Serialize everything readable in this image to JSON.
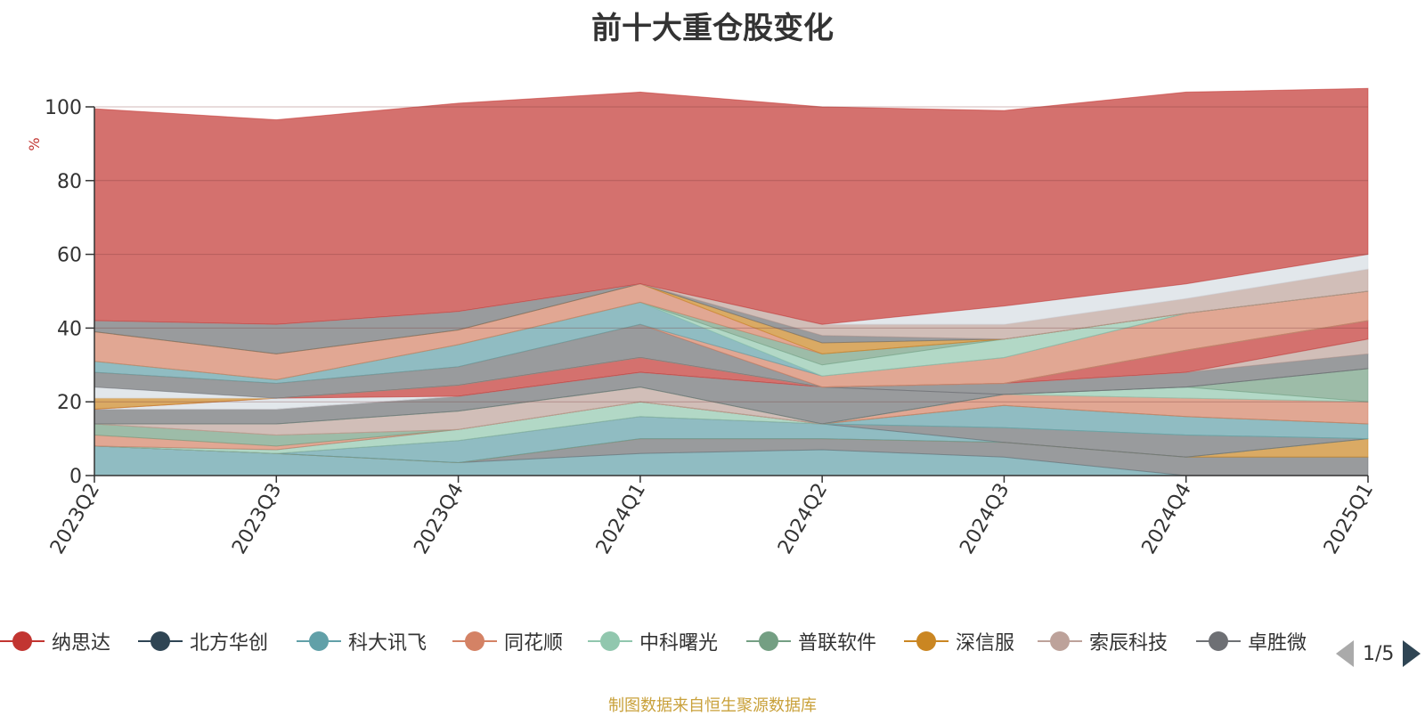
{
  "title": "前十大重仓股变化",
  "source_note": "制图数据来自恒生聚源数据库",
  "pager": {
    "text": "1/5"
  },
  "legend": [
    {
      "name": "纳思达",
      "color": "#c23531"
    },
    {
      "name": "北方华创",
      "color": "#2f4554"
    },
    {
      "name": "科大讯飞",
      "color": "#61a0a8"
    },
    {
      "name": "同花顺",
      "color": "#d48265"
    },
    {
      "name": "中科曙光",
      "color": "#91c7ae"
    },
    {
      "name": "普联软件",
      "color": "#749f83"
    },
    {
      "name": "深信服",
      "color": "#ca8622"
    },
    {
      "name": "索辰科技",
      "color": "#bda29a"
    },
    {
      "name": "卓胜微",
      "color": "#6e7074"
    }
  ],
  "chart_data": {
    "type": "area",
    "stacked": true,
    "title": "前十大重仓股变化",
    "ylabel": "%",
    "ylim": [
      0,
      100
    ],
    "yticks": [
      0,
      20,
      40,
      60,
      80,
      100
    ],
    "categories": [
      "2023Q2",
      "2023Q3",
      "2023Q4",
      "2024Q1",
      "2024Q2",
      "2024Q3",
      "2024Q4",
      "2025Q1"
    ],
    "grid": true,
    "series": [
      {
        "color": "#61a0a8",
        "values": [
          8,
          6,
          3.5,
          6,
          7,
          5,
          0,
          0
        ]
      },
      {
        "color": "#6e7074",
        "values": [
          0,
          0,
          0,
          4,
          3,
          4,
          5,
          5
        ]
      },
      {
        "color": "#ca8622",
        "values": [
          0,
          0,
          0,
          0,
          0,
          0,
          0,
          5
        ]
      },
      {
        "color": "#61a0a8",
        "values": [
          0,
          0,
          6,
          6,
          4,
          0,
          0,
          0
        ]
      },
      {
        "color": "#6e7074",
        "values": [
          0,
          0,
          0,
          0,
          0,
          4,
          6,
          0
        ]
      },
      {
        "color": "#91c7ae",
        "values": [
          0,
          1,
          3,
          4,
          0,
          0,
          0,
          0
        ]
      },
      {
        "color": "#61a0a8",
        "values": [
          0,
          0,
          0,
          0,
          0,
          6,
          5,
          4
        ]
      },
      {
        "color": "#d48265",
        "values": [
          3,
          1,
          0,
          0,
          0,
          0,
          0,
          0
        ]
      },
      {
        "color": "#749f83",
        "values": [
          3,
          3,
          0,
          0,
          0,
          0,
          0,
          0
        ]
      },
      {
        "color": "#d48265",
        "values": [
          0,
          0,
          0,
          0,
          0,
          3,
          5,
          6
        ]
      },
      {
        "color": "#bda29a",
        "values": [
          0,
          3,
          5,
          4,
          0,
          0,
          0,
          0
        ]
      },
      {
        "color": "#91c7ae",
        "values": [
          0,
          0,
          0,
          0,
          0,
          0,
          3,
          0
        ]
      },
      {
        "color": "#749f83",
        "values": [
          0,
          0,
          0,
          0,
          0,
          0,
          0,
          9
        ]
      },
      {
        "color": "#6e7074",
        "values": [
          4,
          4,
          4,
          4,
          10,
          0,
          0,
          0
        ]
      },
      {
        "color": "#6e7074",
        "values": [
          0,
          0,
          0,
          0,
          0,
          3,
          4,
          4
        ]
      },
      {
        "color": "#bda29a",
        "values": [
          0,
          0,
          0,
          0,
          0,
          0,
          0,
          4
        ]
      },
      {
        "color": "#d6dde3",
        "values": [
          0,
          3,
          0,
          0,
          0,
          0,
          0,
          0
        ]
      },
      {
        "color": "#c23531",
        "values": [
          0,
          0,
          3,
          4,
          0,
          0,
          6,
          5
        ]
      },
      {
        "color": "#ca8622",
        "values": [
          3,
          0,
          0,
          0,
          0,
          0,
          0,
          0
        ]
      },
      {
        "color": "#d6dde3",
        "values": [
          3,
          0,
          0,
          0,
          0,
          0,
          0,
          0
        ]
      },
      {
        "color": "#6e7074",
        "values": [
          4,
          4,
          5,
          9,
          0,
          0,
          0,
          0
        ]
      },
      {
        "color": "#d48265",
        "values": [
          0,
          0,
          0,
          0,
          3,
          7,
          10,
          8
        ]
      },
      {
        "color": "#61a0a8",
        "values": [
          3,
          1,
          6,
          6,
          0,
          0,
          0,
          0
        ]
      },
      {
        "color": "#91c7ae",
        "values": [
          0,
          0,
          0,
          0,
          3,
          5,
          0,
          0
        ]
      },
      {
        "color": "#749f83",
        "values": [
          0,
          0,
          0,
          0,
          3,
          0,
          0,
          0
        ]
      },
      {
        "color": "#d48265",
        "values": [
          8,
          7,
          4,
          5,
          0,
          0,
          0,
          0
        ]
      },
      {
        "color": "#ca8622",
        "values": [
          0,
          0,
          0,
          0,
          3,
          0,
          0,
          0
        ]
      },
      {
        "color": "#6e7074",
        "values": [
          3,
          8,
          5,
          0,
          2,
          0,
          0,
          0
        ]
      },
      {
        "color": "#bda29a",
        "values": [
          0,
          0,
          0,
          0,
          3,
          4,
          4,
          6
        ]
      },
      {
        "color": "#d6dde3",
        "values": [
          0,
          0,
          0,
          0,
          0,
          5,
          4,
          4
        ]
      },
      {
        "color": "#c23531",
        "values": [
          57.5,
          55.5,
          56.5,
          52,
          59,
          53,
          52,
          45
        ]
      }
    ]
  }
}
